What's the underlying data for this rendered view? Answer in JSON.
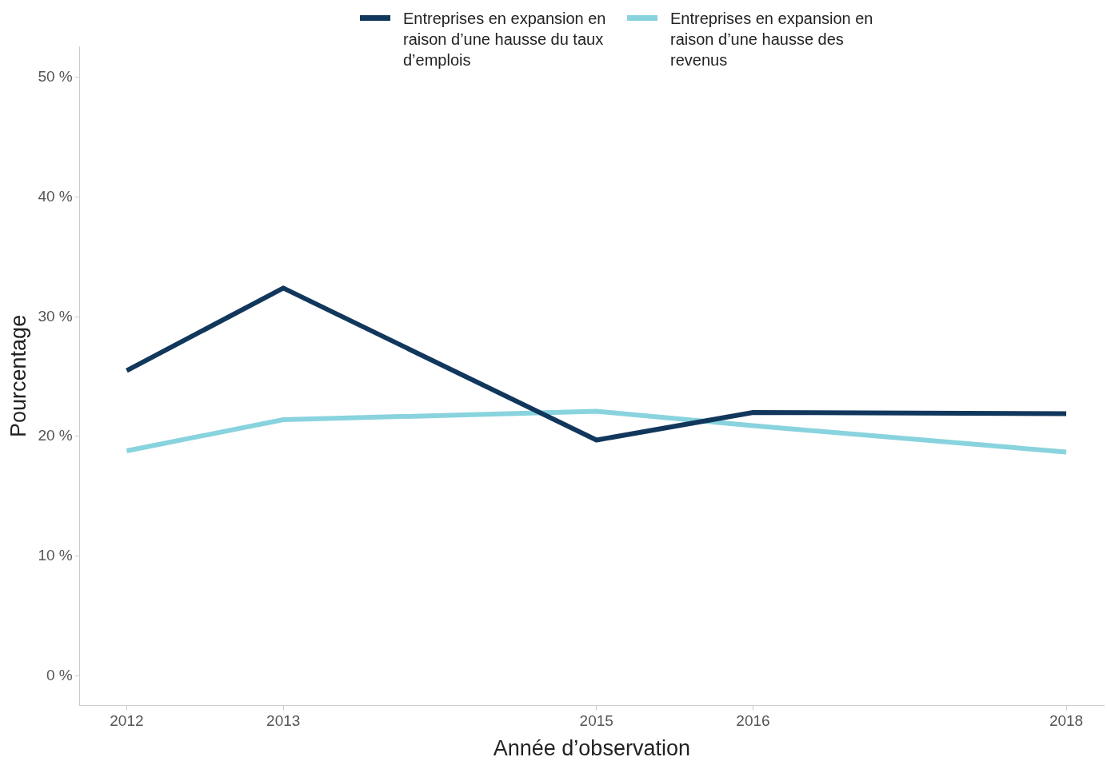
{
  "chart_data": {
    "type": "line",
    "xlabel": "Année d’observation",
    "ylabel": "Pourcentage",
    "x": [
      2012,
      2013,
      2015,
      2016,
      2018
    ],
    "xlim": [
      2011.7,
      2018.24
    ],
    "xticks": [
      2012,
      2013,
      2015,
      2016,
      2018
    ],
    "ylim": [
      -2.5,
      52.6
    ],
    "yticks": [
      {
        "value": 0,
        "label": "0 %"
      },
      {
        "value": 10,
        "label": "10 %"
      },
      {
        "value": 20,
        "label": "20 %"
      },
      {
        "value": 30,
        "label": "30 %"
      },
      {
        "value": 40,
        "label": "40 %"
      },
      {
        "value": 50,
        "label": "50 %"
      }
    ],
    "series": [
      {
        "name": "Entreprises en expansion en raison d’une hausse du taux d’emplois",
        "color": "#12375c",
        "values": [
          25.5,
          32.4,
          19.7,
          22.0,
          21.9
        ]
      },
      {
        "name": "Entreprises en expansion en raison d’une hausse des revenus",
        "color": "#88d3de",
        "values": [
          18.8,
          21.4,
          22.1,
          20.9,
          18.7
        ]
      }
    ],
    "grid": false,
    "legend": "top",
    "marker": "none",
    "line_style": "solid"
  }
}
